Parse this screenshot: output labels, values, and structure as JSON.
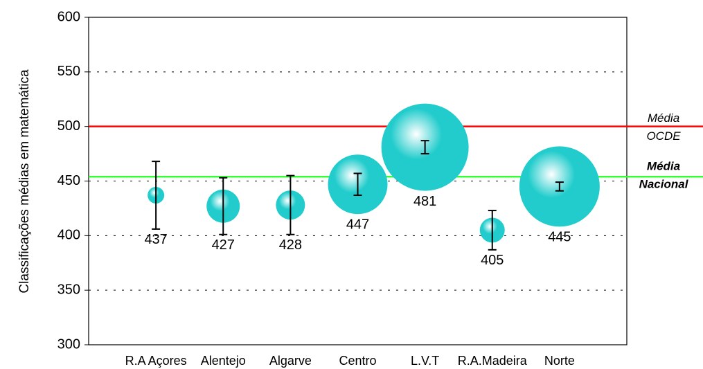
{
  "chart_data": {
    "type": "bubble",
    "y_label": "Classificações médias em matemática",
    "categories": [
      "R.A Açores",
      "Alentejo",
      "Algarve",
      "Centro",
      "L.V.T",
      "R.A.Madeira",
      "Norte"
    ],
    "values": [
      437,
      427,
      428,
      447,
      481,
      405,
      445
    ],
    "errors": [
      31,
      26,
      27,
      10,
      6,
      18,
      4
    ],
    "sizes": [
      12,
      24,
      21,
      43,
      63,
      18,
      58
    ],
    "color": "#22cccc",
    "ylim": [
      300,
      600
    ],
    "yticks": [
      300,
      350,
      400,
      450,
      500,
      550,
      600
    ],
    "grid": true,
    "reference_lines": [
      {
        "value": 500,
        "label_lines": [
          "Média",
          "OCDE"
        ],
        "color": "#ff0000"
      },
      {
        "value": 454,
        "label_lines": [
          "Média",
          "Nacional"
        ],
        "color": "#33ff33"
      }
    ]
  }
}
